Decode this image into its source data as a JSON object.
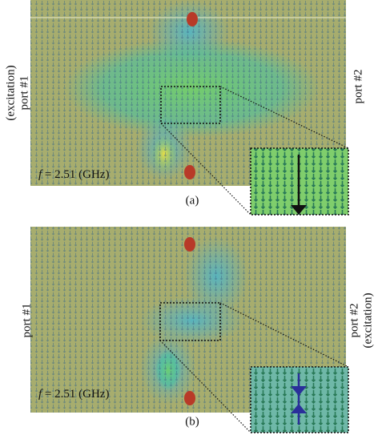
{
  "panels": [
    {
      "label": "(a)",
      "frequency": {
        "symbol": "f",
        "text": "= 2.51 (GHz)"
      },
      "left_port": [
        "(excitation)",
        "port #1"
      ],
      "right_port": [
        "port #2"
      ]
    },
    {
      "label": "(b)",
      "frequency": {
        "symbol": "f",
        "text": "= 2.51 (GHz)"
      },
      "left_port": [
        "port #1"
      ],
      "right_port": [
        "port #2",
        "(excitation)"
      ]
    }
  ]
}
